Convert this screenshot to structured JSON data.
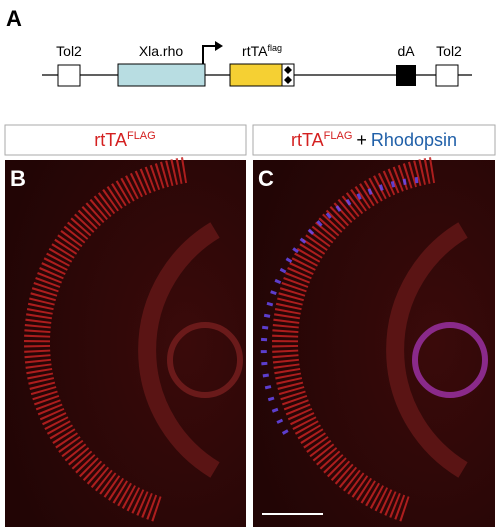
{
  "panel_a": {
    "label": "A",
    "construct": {
      "tol2_left": "Tol2",
      "promoter": "Xla.rho",
      "gene": "rtTA",
      "gene_sup": "flag",
      "polyA": "dA",
      "tol2_right": "Tol2"
    }
  },
  "panel_b": {
    "label": "B",
    "header": {
      "text": "rtTA",
      "sup": "FLAG"
    }
  },
  "panel_c": {
    "label": "C",
    "header": {
      "text": "rtTA",
      "sup": "FLAG",
      "plus": "+",
      "text2": "Rhodopsin"
    }
  }
}
